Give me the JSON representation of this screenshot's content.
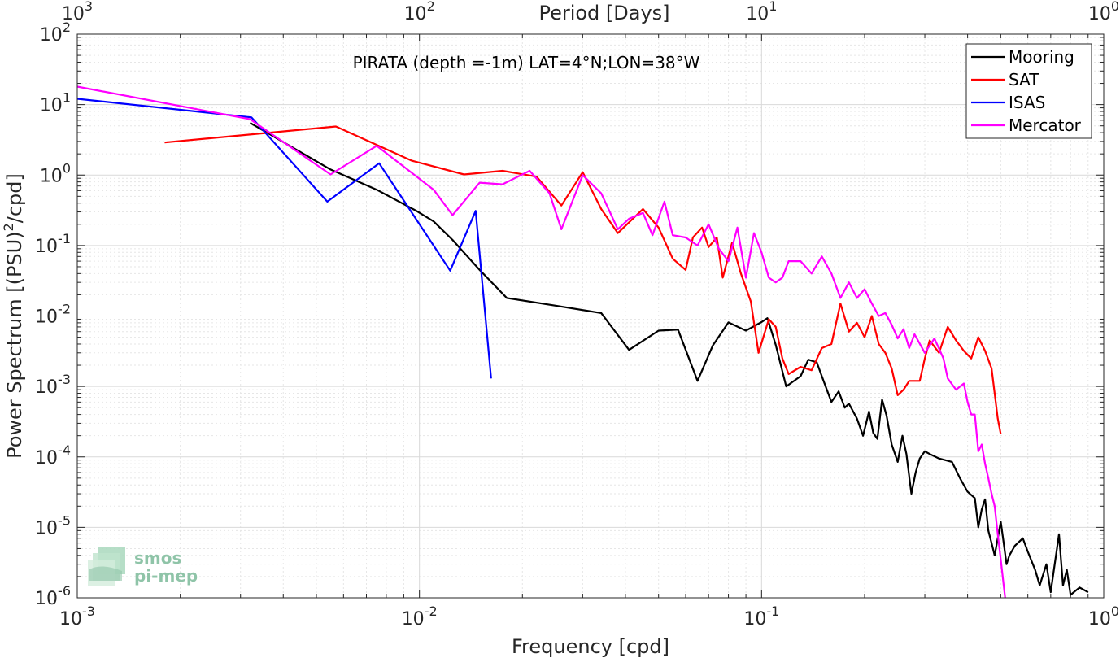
{
  "chart_data": {
    "type": "line",
    "scale": {
      "x": "log",
      "y": "log"
    },
    "xlim": [
      0.001,
      1
    ],
    "ylim": [
      1e-06,
      100
    ],
    "grid": true,
    "xlabel": "Frequency [cpd]",
    "ylabel": "Power Spectrum [(PSU)",
    "ylabel_sup": "2",
    "ylabel_tail": "/cpd]",
    "top_axis": {
      "label": "Period [Days]",
      "ticks": [
        {
          "base": "10",
          "exp": "3"
        },
        {
          "base": "10",
          "exp": "2"
        },
        {
          "base": "10",
          "exp": "1"
        },
        {
          "base": "10",
          "exp": "0"
        }
      ]
    },
    "xticks": [
      {
        "base": "10",
        "exp": "-3"
      },
      {
        "base": "10",
        "exp": "-2"
      },
      {
        "base": "10",
        "exp": "-1"
      },
      {
        "base": "10",
        "exp": "0"
      }
    ],
    "yticks": [
      {
        "base": "10",
        "exp": "2"
      },
      {
        "base": "10",
        "exp": "1"
      },
      {
        "base": "10",
        "exp": "0"
      },
      {
        "base": "10",
        "exp": "-1"
      },
      {
        "base": "10",
        "exp": "-2"
      },
      {
        "base": "10",
        "exp": "-3"
      },
      {
        "base": "10",
        "exp": "-4"
      },
      {
        "base": "10",
        "exp": "-5"
      },
      {
        "base": "10",
        "exp": "-6"
      }
    ],
    "annotation": "PIRATA (depth =-1m) LAT=4°N;LON=38°W",
    "legend_position": "top-right",
    "series": [
      {
        "name": "Mooring",
        "color": "#000000",
        "points": [
          [
            0.0032,
            5.5
          ],
          [
            0.0055,
            1.2
          ],
          [
            0.0075,
            0.62
          ],
          [
            0.0098,
            0.31
          ],
          [
            0.011,
            0.22
          ],
          [
            0.0125,
            0.12
          ],
          [
            0.015,
            0.045
          ],
          [
            0.018,
            0.018
          ],
          [
            0.025,
            0.014
          ],
          [
            0.034,
            0.011
          ],
          [
            0.041,
            0.0033
          ],
          [
            0.05,
            0.0062
          ],
          [
            0.057,
            0.0064
          ],
          [
            0.065,
            0.0012
          ],
          [
            0.072,
            0.0038
          ],
          [
            0.08,
            0.0081
          ],
          [
            0.09,
            0.0062
          ],
          [
            0.1,
            0.0082
          ],
          [
            0.104,
            0.0093
          ],
          [
            0.11,
            0.0039
          ],
          [
            0.118,
            0.001
          ],
          [
            0.13,
            0.0014
          ],
          [
            0.137,
            0.0024
          ],
          [
            0.145,
            0.0022
          ],
          [
            0.15,
            0.0014
          ],
          [
            0.16,
            0.0006
          ],
          [
            0.168,
            0.00085
          ],
          [
            0.175,
            0.0005
          ],
          [
            0.18,
            0.00057
          ],
          [
            0.19,
            0.00035
          ],
          [
            0.198,
            0.0002
          ],
          [
            0.206,
            0.00044
          ],
          [
            0.212,
            0.00022
          ],
          [
            0.218,
            0.00018
          ],
          [
            0.225,
            0.00065
          ],
          [
            0.232,
            0.00038
          ],
          [
            0.24,
            0.00015
          ],
          [
            0.25,
            8.5e-05
          ],
          [
            0.258,
            0.0002
          ],
          [
            0.265,
            0.00011
          ],
          [
            0.274,
            3e-05
          ],
          [
            0.282,
            6e-05
          ],
          [
            0.29,
            9.5e-05
          ],
          [
            0.3,
            0.00012
          ],
          [
            0.31,
            0.00011
          ],
          [
            0.33,
            9.5e-05
          ],
          [
            0.36,
            8.5e-05
          ],
          [
            0.38,
            5e-05
          ],
          [
            0.4,
            3.2e-05
          ],
          [
            0.42,
            2.6e-05
          ],
          [
            0.43,
            1e-05
          ],
          [
            0.44,
            1.8e-05
          ],
          [
            0.45,
            2.5e-05
          ],
          [
            0.46,
            9e-06
          ],
          [
            0.47,
            6e-06
          ],
          [
            0.48,
            4e-06
          ],
          [
            0.5,
            1.2e-05
          ],
          [
            0.51,
            6e-06
          ],
          [
            0.52,
            3e-06
          ],
          [
            0.53,
            4e-06
          ],
          [
            0.55,
            5.5e-06
          ],
          [
            0.58,
            7e-06
          ],
          [
            0.6,
            4.5e-06
          ],
          [
            0.63,
            2.5e-06
          ],
          [
            0.65,
            1.5e-06
          ],
          [
            0.68,
            3e-06
          ],
          [
            0.7,
            1.2e-06
          ],
          [
            0.74,
            8e-06
          ],
          [
            0.76,
            1.5e-06
          ],
          [
            0.78,
            2.5e-06
          ],
          [
            0.8,
            1.1e-06
          ],
          [
            0.85,
            1.4e-06
          ],
          [
            0.9,
            1.2e-06
          ]
        ]
      },
      {
        "name": "SAT",
        "color": "#ff0000",
        "points": [
          [
            0.0018,
            2.9
          ],
          [
            0.0057,
            4.9
          ],
          [
            0.0095,
            1.6
          ],
          [
            0.0135,
            1.02
          ],
          [
            0.0175,
            1.15
          ],
          [
            0.022,
            0.95
          ],
          [
            0.026,
            0.37
          ],
          [
            0.03,
            1.1
          ],
          [
            0.034,
            0.33
          ],
          [
            0.038,
            0.15
          ],
          [
            0.045,
            0.33
          ],
          [
            0.05,
            0.18
          ],
          [
            0.055,
            0.065
          ],
          [
            0.06,
            0.045
          ],
          [
            0.063,
            0.13
          ],
          [
            0.067,
            0.18
          ],
          [
            0.07,
            0.095
          ],
          [
            0.074,
            0.13
          ],
          [
            0.077,
            0.035
          ],
          [
            0.082,
            0.11
          ],
          [
            0.087,
            0.04
          ],
          [
            0.093,
            0.016
          ],
          [
            0.098,
            0.003
          ],
          [
            0.105,
            0.009
          ],
          [
            0.11,
            0.007
          ],
          [
            0.115,
            0.0025
          ],
          [
            0.12,
            0.0015
          ],
          [
            0.13,
            0.0019
          ],
          [
            0.14,
            0.0017
          ],
          [
            0.15,
            0.0035
          ],
          [
            0.16,
            0.004
          ],
          [
            0.17,
            0.015
          ],
          [
            0.18,
            0.006
          ],
          [
            0.19,
            0.008
          ],
          [
            0.2,
            0.005
          ],
          [
            0.21,
            0.01
          ],
          [
            0.22,
            0.004
          ],
          [
            0.23,
            0.003
          ],
          [
            0.24,
            0.0018
          ],
          [
            0.25,
            0.00075
          ],
          [
            0.26,
            0.0009
          ],
          [
            0.27,
            0.0012
          ],
          [
            0.28,
            0.0012
          ],
          [
            0.29,
            0.0012
          ],
          [
            0.3,
            0.0025
          ],
          [
            0.31,
            0.0045
          ],
          [
            0.33,
            0.003
          ],
          [
            0.35,
            0.007
          ],
          [
            0.37,
            0.0045
          ],
          [
            0.39,
            0.0032
          ],
          [
            0.41,
            0.0025
          ],
          [
            0.43,
            0.005
          ],
          [
            0.45,
            0.0032
          ],
          [
            0.47,
            0.0018
          ],
          [
            0.49,
            0.00035
          ],
          [
            0.5,
            0.00021
          ]
        ]
      },
      {
        "name": "ISAS",
        "color": "#0000ff",
        "points": [
          [
            0.001,
            12.1
          ],
          [
            0.00323,
            6.6
          ],
          [
            0.00538,
            0.42
          ],
          [
            0.00763,
            1.47
          ],
          [
            0.0123,
            0.044
          ],
          [
            0.0146,
            0.31
          ],
          [
            0.0162,
            0.0013
          ]
        ]
      },
      {
        "name": "Mercator",
        "color": "#ff00ff",
        "points": [
          [
            0.001,
            18
          ],
          [
            0.0032,
            6.2
          ],
          [
            0.0055,
            1.02
          ],
          [
            0.0075,
            2.6
          ],
          [
            0.011,
            0.62
          ],
          [
            0.0125,
            0.27
          ],
          [
            0.015,
            0.78
          ],
          [
            0.0175,
            0.74
          ],
          [
            0.021,
            1.15
          ],
          [
            0.024,
            0.55
          ],
          [
            0.026,
            0.17
          ],
          [
            0.03,
            1.0
          ],
          [
            0.034,
            0.55
          ],
          [
            0.038,
            0.17
          ],
          [
            0.041,
            0.24
          ],
          [
            0.045,
            0.29
          ],
          [
            0.048,
            0.14
          ],
          [
            0.052,
            0.42
          ],
          [
            0.055,
            0.14
          ],
          [
            0.06,
            0.13
          ],
          [
            0.065,
            0.1
          ],
          [
            0.07,
            0.2
          ],
          [
            0.075,
            0.09
          ],
          [
            0.08,
            0.06
          ],
          [
            0.085,
            0.18
          ],
          [
            0.09,
            0.035
          ],
          [
            0.095,
            0.15
          ],
          [
            0.1,
            0.08
          ],
          [
            0.105,
            0.035
          ],
          [
            0.11,
            0.03
          ],
          [
            0.115,
            0.035
          ],
          [
            0.12,
            0.06
          ],
          [
            0.13,
            0.06
          ],
          [
            0.14,
            0.04
          ],
          [
            0.15,
            0.07
          ],
          [
            0.16,
            0.04
          ],
          [
            0.17,
            0.018
          ],
          [
            0.18,
            0.03
          ],
          [
            0.19,
            0.018
          ],
          [
            0.2,
            0.024
          ],
          [
            0.21,
            0.015
          ],
          [
            0.22,
            0.01
          ],
          [
            0.23,
            0.011
          ],
          [
            0.24,
            0.0075
          ],
          [
            0.25,
            0.0048
          ],
          [
            0.26,
            0.0065
          ],
          [
            0.27,
            0.0035
          ],
          [
            0.28,
            0.0055
          ],
          [
            0.3,
            0.003
          ],
          [
            0.32,
            0.0048
          ],
          [
            0.34,
            0.0025
          ],
          [
            0.35,
            0.0013
          ],
          [
            0.37,
            0.0009
          ],
          [
            0.39,
            0.0011
          ],
          [
            0.4,
            0.0006
          ],
          [
            0.41,
            0.0004
          ],
          [
            0.42,
            0.0004
          ],
          [
            0.43,
            0.00012
          ],
          [
            0.44,
            0.00015
          ],
          [
            0.45,
            8e-05
          ],
          [
            0.46,
            5e-05
          ],
          [
            0.47,
            3e-05
          ],
          [
            0.48,
            2e-05
          ],
          [
            0.49,
            8e-06
          ],
          [
            0.5,
            3.5e-06
          ],
          [
            0.51,
            1.5e-06
          ],
          [
            0.515,
            1e-06
          ]
        ]
      }
    ]
  },
  "logo": {
    "line1": "smos",
    "line2": "pi-mep"
  }
}
